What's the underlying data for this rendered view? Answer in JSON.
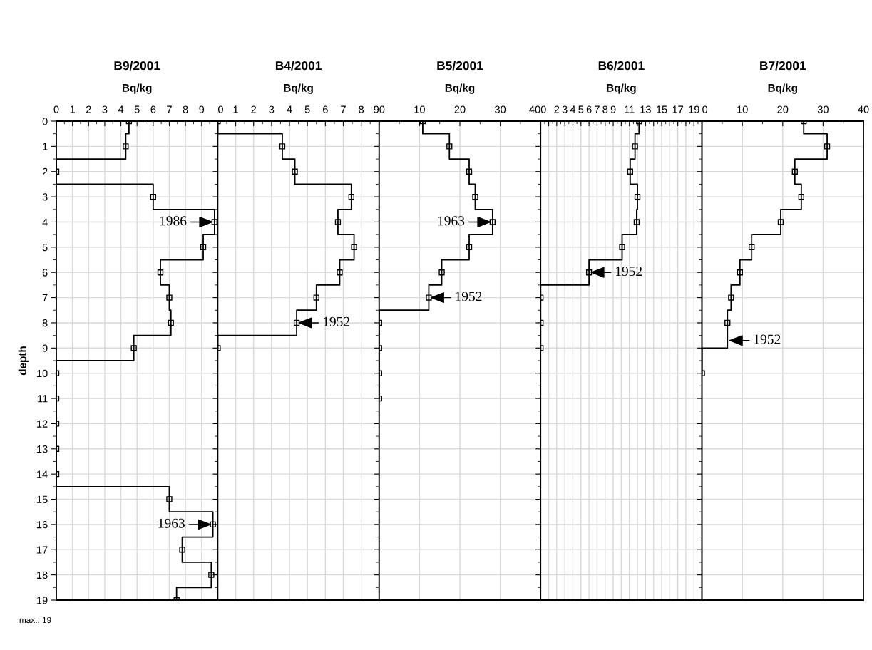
{
  "chart_data": [
    {
      "type": "step",
      "orientation": "horizontal",
      "title": "B9/2001",
      "xlabel": "Bq/kg",
      "ylabel": "depth",
      "xlim": [
        0,
        10
      ],
      "xticks": [
        0,
        1,
        2,
        3,
        4,
        5,
        6,
        7,
        8,
        9
      ],
      "ylim": [
        19,
        0
      ],
      "yticks": [
        0,
        1,
        2,
        3,
        4,
        5,
        6,
        7,
        8,
        9,
        10,
        11,
        12,
        13,
        14,
        15,
        16,
        17,
        18,
        19
      ],
      "grid": true,
      "marker": "square",
      "line_style": "solid",
      "series": [
        {
          "color": "#000000",
          "x": [
            0,
            1,
            2,
            3,
            4,
            5,
            6,
            7,
            8,
            9,
            10,
            11,
            12,
            13,
            14,
            15,
            16,
            17,
            18,
            19
          ],
          "values": [
            4.5,
            4.3,
            0,
            6.0,
            9.8,
            9.1,
            6.45,
            7.0,
            7.1,
            4.8,
            0,
            0,
            0,
            0,
            0,
            7.0,
            9.7,
            7.8,
            9.6,
            7.45
          ]
        }
      ],
      "annotations": [
        {
          "text": "1986",
          "x": 9.8,
          "y": 4
        },
        {
          "text": "1963",
          "x": 9.7,
          "y": 16
        },
        "max.: 19"
      ]
    },
    {
      "type": "step",
      "orientation": "horizontal",
      "title": "B4/2001",
      "xlabel": "Bq/kg",
      "xlim": [
        0,
        9
      ],
      "xticks": [
        0,
        1,
        2,
        3,
        4,
        5,
        6,
        7,
        8,
        9
      ],
      "ylim": [
        19,
        0
      ],
      "yticks": [
        0,
        1,
        2,
        3,
        4,
        5,
        6,
        7,
        8,
        9,
        10,
        11,
        12,
        13,
        14,
        15,
        16,
        17,
        18,
        19
      ],
      "grid": true,
      "marker": "square",
      "line_style": "solid",
      "tick_labels": "x",
      "series": [
        {
          "color": "#000000",
          "x": [
            0,
            1,
            2,
            3,
            4,
            5,
            6,
            7,
            8,
            9
          ],
          "values": [
            0,
            3.6,
            4.3,
            7.45,
            6.7,
            7.6,
            6.8,
            5.5,
            4.4,
            0
          ]
        }
      ],
      "annotations": [
        {
          "text": "1952",
          "x": 4.4,
          "y": 8
        }
      ]
    },
    {
      "type": "step",
      "orientation": "horizontal",
      "title": "B5/2001",
      "xlabel": "Bq/kg",
      "xlim": [
        0,
        40
      ],
      "xticks": [
        0,
        10,
        20,
        30,
        40
      ],
      "ylim": [
        19,
        0
      ],
      "yticks": [
        0,
        1,
        2,
        3,
        4,
        5,
        6,
        7,
        8,
        9,
        10,
        11,
        12,
        13,
        14,
        15,
        16,
        17,
        18,
        19
      ],
      "grid": true,
      "marker": "square",
      "line_style": "solid",
      "tick_labels": "x",
      "series": [
        {
          "color": "#000000",
          "x": [
            0,
            1,
            2,
            3,
            4,
            5,
            6,
            7,
            8,
            9,
            10,
            11
          ],
          "values": [
            10.8,
            17.4,
            22.3,
            23.8,
            28.1,
            22.3,
            15.5,
            12.3,
            0,
            0,
            0,
            0
          ]
        }
      ],
      "annotations": [
        {
          "text": "1963",
          "x": 28.1,
          "y": 4
        },
        {
          "text": "1952",
          "x": 12.3,
          "y": 7
        }
      ]
    },
    {
      "type": "step",
      "orientation": "horizontal",
      "title": "B6/2001",
      "xlabel": "Bq/kg",
      "xlim": [
        0,
        20
      ],
      "xticks": [
        0,
        {
          "value": 1,
          "label": null
        },
        2,
        3,
        4,
        5,
        6,
        7,
        8,
        9,
        {
          "value": 10,
          "label": null
        },
        11,
        {
          "value": 12,
          "label": null
        },
        13,
        {
          "value": 14,
          "label": null
        },
        15,
        {
          "value": 16,
          "label": null
        },
        17,
        {
          "value": 18,
          "label": null
        },
        19,
        {
          "value": 20,
          "label": null
        }
      ],
      "ylim": [
        19,
        0
      ],
      "yticks": [
        0,
        1,
        2,
        3,
        4,
        5,
        6,
        7,
        8,
        9,
        10,
        11,
        12,
        13,
        14,
        15,
        16,
        17,
        18,
        19
      ],
      "grid": true,
      "marker": "square",
      "line_style": "solid",
      "tick_labels": "x",
      "series": [
        {
          "color": "#000000",
          "x": [
            0,
            1,
            2,
            3,
            4,
            5,
            6,
            7,
            8,
            9
          ],
          "values": [
            12.2,
            11.7,
            11.1,
            12.0,
            11.9,
            10.1,
            6.0,
            0,
            0,
            0
          ]
        }
      ],
      "annotations": [
        {
          "text": "1952",
          "x": 6.0,
          "y": 6
        }
      ]
    },
    {
      "type": "step",
      "orientation": "horizontal",
      "title": "B7/2001",
      "xlabel": "Bq/kg",
      "xlim": [
        0,
        40
      ],
      "xticks": [
        0,
        10,
        20,
        30,
        40
      ],
      "ylim": [
        19,
        0
      ],
      "yticks": [
        0,
        1,
        2,
        3,
        4,
        5,
        6,
        7,
        8,
        9,
        10,
        11,
        12,
        13,
        14,
        15,
        16,
        17,
        18,
        19
      ],
      "grid": true,
      "marker": "square",
      "line_style": "solid",
      "tick_labels": "x",
      "series": [
        {
          "color": "#000000",
          "x": [
            0,
            1,
            2,
            3,
            4,
            5,
            6,
            7,
            8,
            10
          ],
          "values": [
            25.2,
            31.0,
            23.0,
            24.6,
            19.5,
            12.3,
            9.4,
            7.2,
            6.3,
            0
          ]
        }
      ],
      "annotations": [
        {
          "text": "1952",
          "x": 6.3,
          "y": 8.7
        }
      ]
    }
  ]
}
